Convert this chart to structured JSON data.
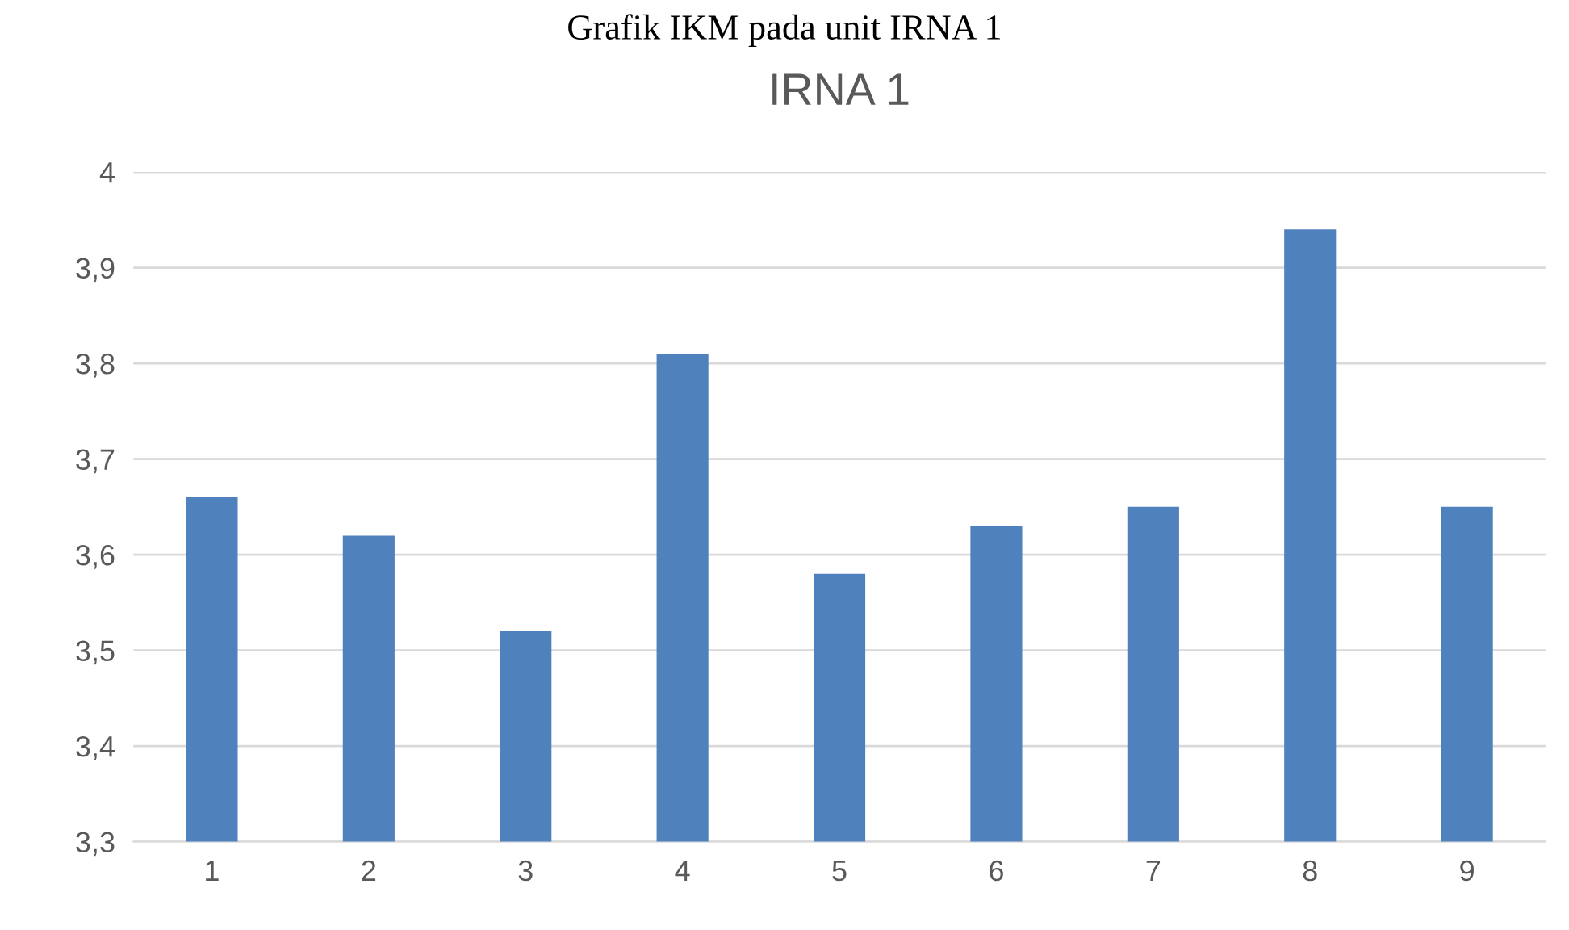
{
  "chart_data": {
    "type": "bar",
    "title": "IRNA 1",
    "annotations": [
      "Grafik IKM pada unit IRNA 1"
    ],
    "categories": [
      "1",
      "2",
      "3",
      "4",
      "5",
      "6",
      "7",
      "8",
      "9"
    ],
    "values": [
      3.66,
      3.62,
      3.52,
      3.81,
      3.58,
      3.63,
      3.65,
      3.94,
      3.65
    ],
    "color": "#4f81bd",
    "ylim": [
      3.3,
      4
    ],
    "yticks": [
      {
        "value": 3.3,
        "label": "3,3"
      },
      {
        "value": 3.4,
        "label": "3,4"
      },
      {
        "value": 3.5,
        "label": "3,5"
      },
      {
        "value": 3.6,
        "label": "3,6"
      },
      {
        "value": 3.7,
        "label": "3,7"
      },
      {
        "value": 3.8,
        "label": "3,8"
      },
      {
        "value": 3.9,
        "label": "3,9"
      },
      {
        "value": 4,
        "label": "4"
      }
    ],
    "grid": "y",
    "legend": false
  }
}
